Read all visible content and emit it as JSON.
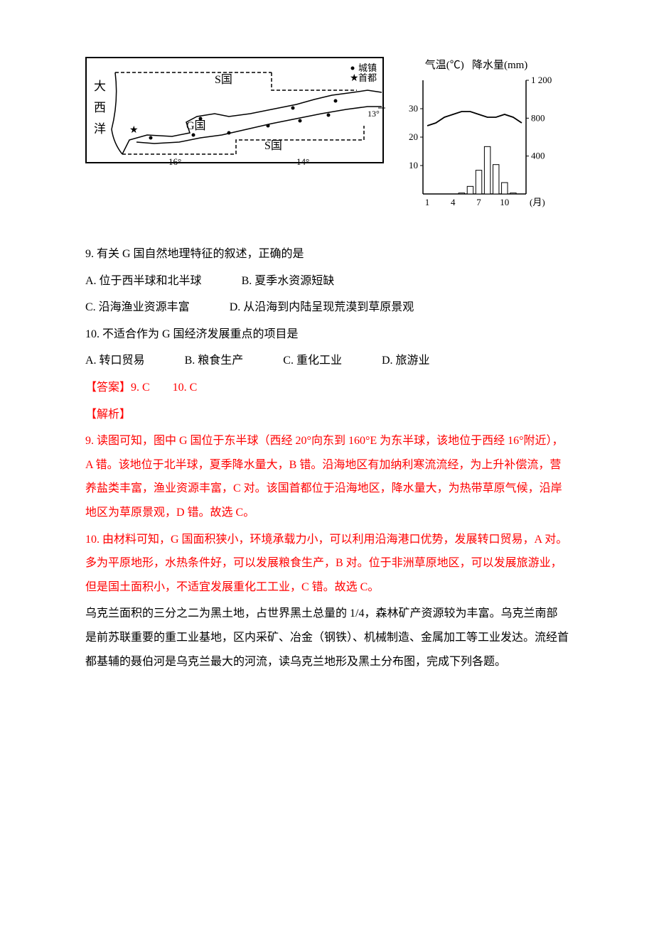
{
  "map": {
    "border_color": "#000000",
    "labels": {
      "ocean_line1": "大",
      "ocean_line2": "西",
      "ocean_line3": "洋",
      "s_country_top": "S国",
      "s_country_bottom": "S国",
      "g_country": "G国",
      "legend_town": "城镇",
      "legend_capital": "首都",
      "lon_16": "16°",
      "lon_14": "14°",
      "lat_13": "13°"
    },
    "marker_colors": {
      "dot": "#000000",
      "star": "#000000"
    }
  },
  "climate_chart": {
    "type": "combo-bar-line",
    "title_left": "气温(℃)",
    "title_right": "降水量(mm)",
    "x_axis_label": "(月)",
    "x_ticks": [
      "1",
      "4",
      "7",
      "10"
    ],
    "temp_y_ticks": [
      "10",
      "20",
      "30"
    ],
    "precip_y_ticks": [
      "400",
      "800",
      "1 200"
    ],
    "months": [
      1,
      2,
      3,
      4,
      5,
      6,
      7,
      8,
      9,
      10,
      11,
      12
    ],
    "temperature_c": [
      24,
      25,
      27,
      28,
      29,
      29,
      28,
      27,
      27,
      28,
      27,
      25
    ],
    "precipitation_mm": [
      0,
      0,
      0,
      0,
      10,
      80,
      250,
      500,
      310,
      120,
      10,
      0
    ],
    "temp_ylim": [
      0,
      40
    ],
    "precip_ylim": [
      0,
      1200
    ],
    "bar_color": "#ffffff",
    "bar_stroke": "#000000",
    "line_color": "#000000",
    "axis_color": "#000000",
    "label_fontsize": 13
  },
  "questions": {
    "q9_stem": "9. 有关 G 国自然地理特征的叙述，正确的是",
    "q9_optA": "A. 位于西半球和北半球",
    "q9_optB": "B. 夏季水资源短缺",
    "q9_optC": "C. 沿海渔业资源丰富",
    "q9_optD": "D. 从沿海到内陆呈现荒漠到草原景观",
    "q10_stem": "10. 不适合作为 G 国经济发展重点的项目是",
    "q10_optA": "A. 转口贸易",
    "q10_optB": "B. 粮食生产",
    "q10_optC": "C. 重化工业",
    "q10_optD": "D. 旅游业"
  },
  "answer": {
    "label": "【答案】9. C　　10. C"
  },
  "analysis": {
    "label": "【解析】",
    "p9": "9. 读图可知，图中 G 国位于东半球（西经 20°向东到 160°E 为东半球，该地位于西经 16°附近），A 错。该地位于北半球，夏季降水量大，B 错。沿海地区有加纳利寒流流经，为上升补偿流，营养盐类丰富，渔业资源丰富，C 对。该国首都位于沿海地区，降水量大，为热带草原气候，沿岸地区为草原景观，D 错。故选 C。",
    "p10": "10. 由材料可知，G 国面积狭小，环境承载力小，可以利用沿海港口优势，发展转口贸易，A 对。多为平原地形，水热条件好，可以发展粮食生产，B 对。位于非洲草原地区，可以发展旅游业，但是国土面积小，不适宜发展重化工工业，C 错。故选 C。"
  },
  "intro_next": "乌克兰面积的三分之二为黑土地，占世界黑土总量的 1/4，森林矿产资源较为丰富。乌克兰南部是前苏联重要的重工业基地，区内采矿、冶金（钢铁）、机械制造、金属加工等工业发达。流经首都基辅的聂伯河是乌克兰最大的河流，读乌克兰地形及黑土分布图，完成下列各题。"
}
